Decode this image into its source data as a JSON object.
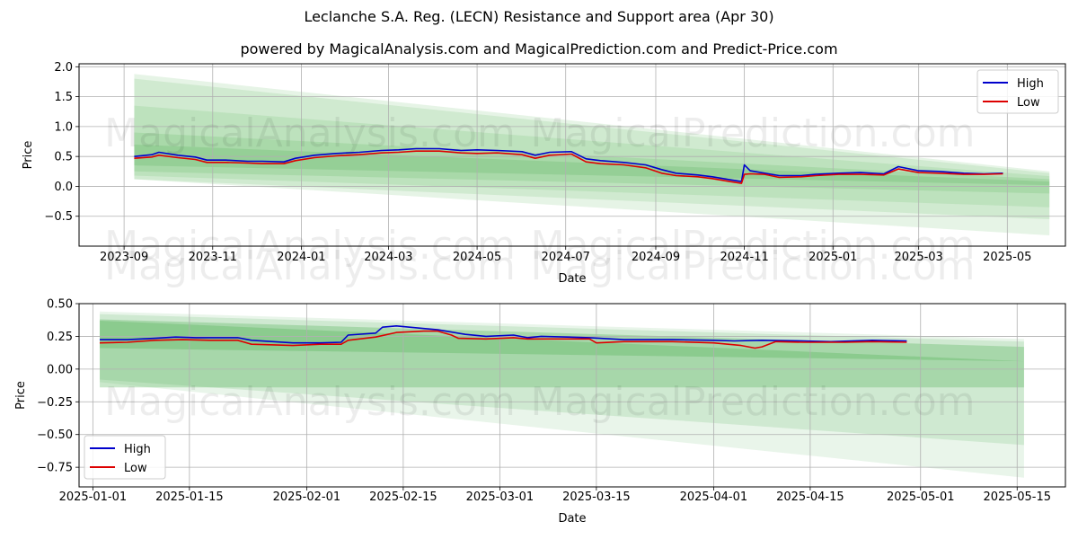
{
  "title": "Leclanche S.A. Reg. (LECN) Resistance and Support area (Apr 30)",
  "subtitle": "powered by MagicalAnalysis.com and MagicalPrediction.com and Predict-Price.com",
  "watermarks": [
    "MagicalAnalysis.com",
    "MagicalPrediction.com"
  ],
  "colors": {
    "high": "#0000cc",
    "low": "#dd0000",
    "band": "#4caf50",
    "grid": "#b0b0b0"
  },
  "chart_data": [
    {
      "type": "line",
      "xlabel": "Date",
      "ylabel": "Price",
      "x_tick_labels": [
        "2023-09",
        "2023-11",
        "2024-01",
        "2024-03",
        "2024-05",
        "2024-07",
        "2024-09",
        "2024-11",
        "2025-01",
        "2025-03",
        "2025-05"
      ],
      "x_ticks": [
        "2023-09-01",
        "2023-11-01",
        "2024-01-01",
        "2024-03-01",
        "2024-05-01",
        "2024-07-01",
        "2024-09-01",
        "2024-11-01",
        "2025-01-01",
        "2025-03-01",
        "2025-05-01"
      ],
      "xlim": [
        "2023-08-01",
        "2025-06-10"
      ],
      "ylim": [
        -1.0,
        2.05
      ],
      "y_ticks": [
        -0.5,
        0.0,
        0.5,
        1.0,
        1.5,
        2.0
      ],
      "y_tick_labels": [
        "−0.5",
        "0.0",
        "0.5",
        "1.0",
        "1.5",
        "2.0"
      ],
      "grid": true,
      "legend": {
        "placement": "top-right",
        "entries": [
          "High",
          "Low"
        ]
      },
      "bands": [
        {
          "start": "2023-09-08",
          "end": "2025-05-30",
          "upper": [
            1.88,
            0.25
          ],
          "lower": [
            0.12,
            -0.82
          ]
        },
        {
          "start": "2023-09-08",
          "end": "2025-05-30",
          "upper": [
            1.8,
            0.22
          ],
          "lower": [
            0.12,
            -0.55
          ]
        },
        {
          "start": "2023-09-08",
          "end": "2025-05-30",
          "upper": [
            1.35,
            0.17
          ],
          "lower": [
            0.18,
            -0.35
          ]
        },
        {
          "start": "2023-09-08",
          "end": "2025-05-30",
          "upper": [
            0.9,
            0.12
          ],
          "lower": [
            0.25,
            -0.12
          ]
        },
        {
          "start": "2023-09-08",
          "end": "2025-05-30",
          "upper": [
            0.7,
            0.08
          ],
          "lower": [
            0.35,
            0.02
          ]
        }
      ],
      "series": [
        {
          "name": "High",
          "points": [
            [
              "2023-09-08",
              0.5
            ],
            [
              "2023-09-20",
              0.53
            ],
            [
              "2023-09-25",
              0.57
            ],
            [
              "2023-10-08",
              0.52
            ],
            [
              "2023-10-20",
              0.49
            ],
            [
              "2023-10-28",
              0.44
            ],
            [
              "2023-11-10",
              0.44
            ],
            [
              "2023-11-25",
              0.42
            ],
            [
              "2023-12-05",
              0.42
            ],
            [
              "2023-12-20",
              0.41
            ],
            [
              "2023-12-28",
              0.47
            ],
            [
              "2024-01-10",
              0.52
            ],
            [
              "2024-01-25",
              0.55
            ],
            [
              "2024-02-10",
              0.57
            ],
            [
              "2024-02-25",
              0.6
            ],
            [
              "2024-03-08",
              0.61
            ],
            [
              "2024-03-20",
              0.63
            ],
            [
              "2024-04-05",
              0.63
            ],
            [
              "2024-04-20",
              0.6
            ],
            [
              "2024-05-01",
              0.61
            ],
            [
              "2024-05-15",
              0.6
            ],
            [
              "2024-06-01",
              0.58
            ],
            [
              "2024-06-10",
              0.52
            ],
            [
              "2024-06-20",
              0.57
            ],
            [
              "2024-07-05",
              0.58
            ],
            [
              "2024-07-15",
              0.46
            ],
            [
              "2024-07-25",
              0.43
            ],
            [
              "2024-08-10",
              0.4
            ],
            [
              "2024-08-25",
              0.36
            ],
            [
              "2024-09-05",
              0.28
            ],
            [
              "2024-09-15",
              0.22
            ],
            [
              "2024-09-30",
              0.19
            ],
            [
              "2024-10-10",
              0.16
            ],
            [
              "2024-10-22",
              0.11
            ],
            [
              "2024-10-30",
              0.08
            ],
            [
              "2024-11-01",
              0.36
            ],
            [
              "2024-11-05",
              0.26
            ],
            [
              "2024-11-15",
              0.22
            ],
            [
              "2024-11-25",
              0.18
            ],
            [
              "2024-12-10",
              0.18
            ],
            [
              "2024-12-20",
              0.2
            ],
            [
              "2025-01-05",
              0.22
            ],
            [
              "2025-01-20",
              0.23
            ],
            [
              "2025-02-05",
              0.21
            ],
            [
              "2025-02-15",
              0.33
            ],
            [
              "2025-03-01",
              0.26
            ],
            [
              "2025-03-15",
              0.25
            ],
            [
              "2025-04-01",
              0.22
            ],
            [
              "2025-04-15",
              0.21
            ],
            [
              "2025-04-28",
              0.22
            ]
          ]
        },
        {
          "name": "Low",
          "points": [
            [
              "2023-09-08",
              0.47
            ],
            [
              "2023-09-20",
              0.49
            ],
            [
              "2023-09-25",
              0.52
            ],
            [
              "2023-10-08",
              0.48
            ],
            [
              "2023-10-20",
              0.45
            ],
            [
              "2023-10-28",
              0.4
            ],
            [
              "2023-11-10",
              0.4
            ],
            [
              "2023-11-25",
              0.39
            ],
            [
              "2023-12-05",
              0.38
            ],
            [
              "2023-12-20",
              0.38
            ],
            [
              "2023-12-28",
              0.43
            ],
            [
              "2024-01-10",
              0.48
            ],
            [
              "2024-01-25",
              0.51
            ],
            [
              "2024-02-10",
              0.53
            ],
            [
              "2024-02-25",
              0.56
            ],
            [
              "2024-03-08",
              0.57
            ],
            [
              "2024-03-20",
              0.59
            ],
            [
              "2024-04-05",
              0.59
            ],
            [
              "2024-04-20",
              0.56
            ],
            [
              "2024-05-01",
              0.55
            ],
            [
              "2024-05-15",
              0.56
            ],
            [
              "2024-06-01",
              0.53
            ],
            [
              "2024-06-10",
              0.47
            ],
            [
              "2024-06-20",
              0.52
            ],
            [
              "2024-07-05",
              0.54
            ],
            [
              "2024-07-15",
              0.41
            ],
            [
              "2024-07-25",
              0.38
            ],
            [
              "2024-08-10",
              0.36
            ],
            [
              "2024-08-25",
              0.31
            ],
            [
              "2024-09-05",
              0.22
            ],
            [
              "2024-09-15",
              0.18
            ],
            [
              "2024-09-30",
              0.16
            ],
            [
              "2024-10-10",
              0.13
            ],
            [
              "2024-10-22",
              0.08
            ],
            [
              "2024-10-30",
              0.05
            ],
            [
              "2024-11-01",
              0.2
            ],
            [
              "2024-11-05",
              0.21
            ],
            [
              "2024-11-15",
              0.2
            ],
            [
              "2024-11-25",
              0.15
            ],
            [
              "2024-12-10",
              0.16
            ],
            [
              "2024-12-20",
              0.18
            ],
            [
              "2025-01-05",
              0.2
            ],
            [
              "2025-01-20",
              0.2
            ],
            [
              "2025-02-05",
              0.19
            ],
            [
              "2025-02-15",
              0.29
            ],
            [
              "2025-03-01",
              0.23
            ],
            [
              "2025-03-15",
              0.22
            ],
            [
              "2025-04-01",
              0.2
            ],
            [
              "2025-04-15",
              0.2
            ],
            [
              "2025-04-28",
              0.21
            ]
          ]
        }
      ]
    },
    {
      "type": "line",
      "xlabel": "Date",
      "ylabel": "Price",
      "x_tick_labels": [
        "2025-01-01",
        "2025-01-15",
        "2025-02-01",
        "2025-02-15",
        "2025-03-01",
        "2025-03-15",
        "2025-04-01",
        "2025-04-15",
        "2025-05-01",
        "2025-05-15"
      ],
      "x_ticks": [
        "2025-01-01",
        "2025-01-15",
        "2025-02-01",
        "2025-02-15",
        "2025-03-01",
        "2025-03-15",
        "2025-04-01",
        "2025-04-15",
        "2025-05-01",
        "2025-05-15"
      ],
      "xlim": [
        "2024-12-30",
        "2025-05-22"
      ],
      "ylim": [
        -0.9,
        0.5
      ],
      "y_ticks": [
        -0.75,
        -0.5,
        -0.25,
        0.0,
        0.25,
        0.5
      ],
      "y_tick_labels": [
        "−0.75",
        "−0.50",
        "−0.25",
        "0.00",
        "0.25",
        "0.50"
      ],
      "grid": true,
      "legend": {
        "placement": "bottom-left",
        "entries": [
          "High",
          "Low"
        ]
      },
      "bands": [
        {
          "start": "2025-01-02",
          "end": "2025-05-16",
          "upper": [
            0.44,
            0.23
          ],
          "lower": [
            -0.1,
            -0.83
          ]
        },
        {
          "start": "2025-01-02",
          "end": "2025-05-16",
          "upper": [
            0.42,
            0.21
          ],
          "lower": [
            -0.08,
            -0.58
          ]
        },
        {
          "start": "2025-01-02",
          "end": "2025-05-16",
          "upper": [
            0.38,
            0.17
          ],
          "lower": [
            -0.14,
            -0.14
          ]
        },
        {
          "start": "2025-01-02",
          "end": "2025-05-16",
          "upper": [
            0.37,
            0.06
          ],
          "lower": [
            0.16,
            0.06
          ]
        }
      ],
      "series": [
        {
          "name": "High",
          "points": [
            [
              "2025-01-02",
              0.225
            ],
            [
              "2025-01-06",
              0.225
            ],
            [
              "2025-01-10",
              0.235
            ],
            [
              "2025-01-13",
              0.245
            ],
            [
              "2025-01-16",
              0.24
            ],
            [
              "2025-01-22",
              0.24
            ],
            [
              "2025-01-24",
              0.22
            ],
            [
              "2025-01-30",
              0.2
            ],
            [
              "2025-02-03",
              0.2
            ],
            [
              "2025-02-06",
              0.205
            ],
            [
              "2025-02-07",
              0.26
            ],
            [
              "2025-02-11",
              0.275
            ],
            [
              "2025-02-12",
              0.32
            ],
            [
              "2025-02-14",
              0.33
            ],
            [
              "2025-02-18",
              0.31
            ],
            [
              "2025-02-20",
              0.3
            ],
            [
              "2025-02-24",
              0.265
            ],
            [
              "2025-02-27",
              0.25
            ],
            [
              "2025-03-03",
              0.26
            ],
            [
              "2025-03-05",
              0.24
            ],
            [
              "2025-03-07",
              0.25
            ],
            [
              "2025-03-14",
              0.24
            ],
            [
              "2025-03-19",
              0.225
            ],
            [
              "2025-03-26",
              0.225
            ],
            [
              "2025-04-01",
              0.22
            ],
            [
              "2025-04-04",
              0.215
            ],
            [
              "2025-04-08",
              0.22
            ],
            [
              "2025-04-14",
              0.215
            ],
            [
              "2025-04-18",
              0.21
            ],
            [
              "2025-04-24",
              0.22
            ],
            [
              "2025-04-29",
              0.215
            ]
          ]
        },
        {
          "name": "Low",
          "points": [
            [
              "2025-01-02",
              0.2
            ],
            [
              "2025-01-06",
              0.205
            ],
            [
              "2025-01-10",
              0.22
            ],
            [
              "2025-01-14",
              0.225
            ],
            [
              "2025-01-18",
              0.22
            ],
            [
              "2025-01-22",
              0.22
            ],
            [
              "2025-01-24",
              0.19
            ],
            [
              "2025-01-30",
              0.18
            ],
            [
              "2025-02-03",
              0.19
            ],
            [
              "2025-02-06",
              0.19
            ],
            [
              "2025-02-07",
              0.22
            ],
            [
              "2025-02-11",
              0.245
            ],
            [
              "2025-02-14",
              0.28
            ],
            [
              "2025-02-18",
              0.29
            ],
            [
              "2025-02-20",
              0.29
            ],
            [
              "2025-02-22",
              0.26
            ],
            [
              "2025-02-23",
              0.235
            ],
            [
              "2025-02-27",
              0.23
            ],
            [
              "2025-03-03",
              0.24
            ],
            [
              "2025-03-05",
              0.23
            ],
            [
              "2025-03-14",
              0.23
            ],
            [
              "2025-03-15",
              0.2
            ],
            [
              "2025-03-19",
              0.21
            ],
            [
              "2025-03-26",
              0.21
            ],
            [
              "2025-04-01",
              0.2
            ],
            [
              "2025-04-05",
              0.18
            ],
            [
              "2025-04-07",
              0.16
            ],
            [
              "2025-04-08",
              0.17
            ],
            [
              "2025-04-10",
              0.21
            ],
            [
              "2025-04-14",
              0.205
            ],
            [
              "2025-04-20",
              0.205
            ],
            [
              "2025-04-24",
              0.21
            ],
            [
              "2025-04-29",
              0.205
            ]
          ]
        }
      ]
    }
  ]
}
